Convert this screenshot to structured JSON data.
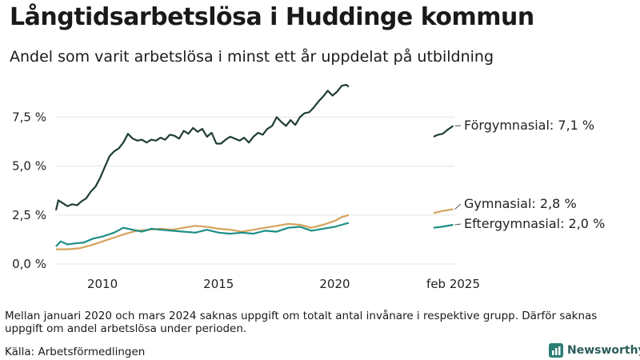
{
  "title": "Långtidsarbetslösa i Huddinge kommun",
  "subtitle": "Andel som varit arbetslösa i minst ett år uppdelat på utbildning",
  "note": "Mellan januari 2020 och mars 2024 saknas uppgift om totalt antal invånare i respektive grupp. Därför saknas uppgift om andel arbetslösa under perioden.",
  "source": "Källa: Arbetsförmedlingen",
  "brand": "Newsworthy",
  "chart_data": {
    "type": "line",
    "title": "Långtidsarbetslösa i Huddinge kommun",
    "subtitle": "Andel som varit arbetslösa i minst ett år uppdelat på utbildning",
    "xlabel": "",
    "ylabel": "",
    "ylim": [
      0,
      9.6
    ],
    "yticks": [
      {
        "value": 0,
        "label": "0,0 %"
      },
      {
        "value": 2.5,
        "label": "2,5 %"
      },
      {
        "value": 5.0,
        "label": "5,0 %"
      },
      {
        "value": 7.5,
        "label": "7,5 %"
      }
    ],
    "xticks": [
      {
        "value": 2010,
        "label": "2010"
      },
      {
        "value": 2015,
        "label": "2015"
      },
      {
        "value": 2020,
        "label": "2020"
      },
      {
        "value": 2025.1,
        "label": "feb 2025"
      }
    ],
    "xlim": [
      2008.0,
      2025.15
    ],
    "grid": true,
    "series": [
      {
        "name": "Förgymnasial",
        "end_label": "Förgymnasial: 7,1 %",
        "color": "#1f3d36",
        "segments": [
          [
            [
              2008.0,
              2.75
            ],
            [
              2008.1,
              3.25
            ],
            [
              2008.3,
              3.1
            ],
            [
              2008.5,
              2.95
            ],
            [
              2008.7,
              3.05
            ],
            [
              2008.9,
              3.0
            ],
            [
              2009.1,
              3.2
            ],
            [
              2009.3,
              3.35
            ],
            [
              2009.5,
              3.7
            ],
            [
              2009.7,
              3.95
            ],
            [
              2009.9,
              4.4
            ],
            [
              2010.1,
              4.95
            ],
            [
              2010.3,
              5.5
            ],
            [
              2010.5,
              5.75
            ],
            [
              2010.7,
              5.9
            ],
            [
              2010.9,
              6.2
            ],
            [
              2011.1,
              6.65
            ],
            [
              2011.3,
              6.4
            ],
            [
              2011.5,
              6.3
            ],
            [
              2011.7,
              6.35
            ],
            [
              2011.9,
              6.2
            ],
            [
              2012.1,
              6.35
            ],
            [
              2012.3,
              6.3
            ],
            [
              2012.5,
              6.45
            ],
            [
              2012.7,
              6.35
            ],
            [
              2012.9,
              6.6
            ],
            [
              2013.1,
              6.55
            ],
            [
              2013.3,
              6.4
            ],
            [
              2013.5,
              6.8
            ],
            [
              2013.7,
              6.65
            ],
            [
              2013.9,
              6.95
            ],
            [
              2014.1,
              6.75
            ],
            [
              2014.3,
              6.9
            ],
            [
              2014.5,
              6.5
            ],
            [
              2014.7,
              6.7
            ],
            [
              2014.9,
              6.15
            ],
            [
              2015.1,
              6.15
            ],
            [
              2015.3,
              6.35
            ],
            [
              2015.5,
              6.5
            ],
            [
              2015.7,
              6.4
            ],
            [
              2015.9,
              6.3
            ],
            [
              2016.1,
              6.45
            ],
            [
              2016.3,
              6.2
            ],
            [
              2016.5,
              6.5
            ],
            [
              2016.7,
              6.7
            ],
            [
              2016.9,
              6.6
            ],
            [
              2017.1,
              6.9
            ],
            [
              2017.3,
              7.05
            ],
            [
              2017.5,
              7.5
            ],
            [
              2017.7,
              7.25
            ],
            [
              2017.9,
              7.05
            ],
            [
              2018.1,
              7.35
            ],
            [
              2018.3,
              7.1
            ],
            [
              2018.5,
              7.5
            ],
            [
              2018.7,
              7.7
            ],
            [
              2018.9,
              7.75
            ],
            [
              2019.1,
              8.0
            ],
            [
              2019.3,
              8.3
            ],
            [
              2019.5,
              8.55
            ],
            [
              2019.7,
              8.85
            ],
            [
              2019.9,
              8.6
            ],
            [
              2020.1,
              8.8
            ],
            [
              2020.3,
              9.1
            ],
            [
              2020.5,
              9.15
            ],
            [
              2020.6,
              9.05
            ]
          ],
          [
            [
              2024.25,
              6.5
            ],
            [
              2024.45,
              6.6
            ],
            [
              2024.65,
              6.65
            ],
            [
              2024.85,
              6.85
            ],
            [
              2025.1,
              7.05
            ]
          ]
        ]
      },
      {
        "name": "Gymnasial",
        "end_label": "Gymnasial: 2,8 %",
        "color": "#d4a35a",
        "segments": [
          [
            [
              2008.0,
              0.75
            ],
            [
              2008.5,
              0.75
            ],
            [
              2009.0,
              0.8
            ],
            [
              2009.5,
              0.95
            ],
            [
              2010.0,
              1.15
            ],
            [
              2010.5,
              1.35
            ],
            [
              2011.0,
              1.55
            ],
            [
              2011.5,
              1.7
            ],
            [
              2012.0,
              1.75
            ],
            [
              2012.5,
              1.8
            ],
            [
              2013.0,
              1.75
            ],
            [
              2013.5,
              1.85
            ],
            [
              2014.0,
              1.95
            ],
            [
              2014.5,
              1.9
            ],
            [
              2015.0,
              1.8
            ],
            [
              2015.5,
              1.75
            ],
            [
              2016.0,
              1.65
            ],
            [
              2016.5,
              1.75
            ],
            [
              2017.0,
              1.85
            ],
            [
              2017.5,
              1.95
            ],
            [
              2018.0,
              2.05
            ],
            [
              2018.5,
              2.0
            ],
            [
              2019.0,
              1.85
            ],
            [
              2019.5,
              2.0
            ],
            [
              2020.0,
              2.2
            ],
            [
              2020.3,
              2.4
            ],
            [
              2020.6,
              2.5
            ]
          ],
          [
            [
              2024.25,
              2.6
            ],
            [
              2024.6,
              2.7
            ],
            [
              2025.1,
              2.8
            ]
          ]
        ]
      },
      {
        "name": "Eftergymnasial",
        "end_label": "Eftergymnasial: 2,0 %",
        "color": "#1e8f86",
        "segments": [
          [
            [
              2008.0,
              0.9
            ],
            [
              2008.2,
              1.15
            ],
            [
              2008.5,
              1.0
            ],
            [
              2008.8,
              1.05
            ],
            [
              2009.2,
              1.1
            ],
            [
              2009.6,
              1.3
            ],
            [
              2010.0,
              1.4
            ],
            [
              2010.5,
              1.6
            ],
            [
              2010.9,
              1.85
            ],
            [
              2011.3,
              1.75
            ],
            [
              2011.7,
              1.65
            ],
            [
              2012.1,
              1.8
            ],
            [
              2012.5,
              1.75
            ],
            [
              2013.0,
              1.7
            ],
            [
              2013.5,
              1.65
            ],
            [
              2014.0,
              1.6
            ],
            [
              2014.5,
              1.75
            ],
            [
              2015.0,
              1.6
            ],
            [
              2015.5,
              1.55
            ],
            [
              2016.0,
              1.6
            ],
            [
              2016.5,
              1.55
            ],
            [
              2017.0,
              1.7
            ],
            [
              2017.5,
              1.65
            ],
            [
              2018.0,
              1.85
            ],
            [
              2018.5,
              1.9
            ],
            [
              2019.0,
              1.7
            ],
            [
              2019.5,
              1.8
            ],
            [
              2020.0,
              1.9
            ],
            [
              2020.3,
              2.0
            ],
            [
              2020.6,
              2.1
            ]
          ],
          [
            [
              2024.25,
              1.85
            ],
            [
              2024.6,
              1.9
            ],
            [
              2025.1,
              2.0
            ]
          ]
        ]
      }
    ]
  }
}
